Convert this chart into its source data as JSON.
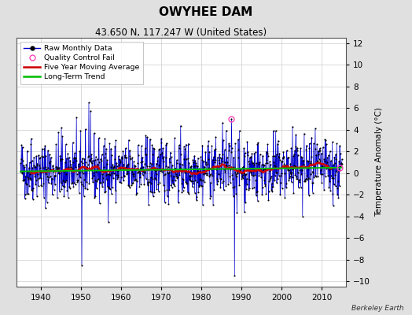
{
  "title": "OWYHEE DAM",
  "subtitle": "43.650 N, 117.247 W (United States)",
  "ylabel": "Temperature Anomaly (°C)",
  "credit": "Berkeley Earth",
  "ylim": [
    -10.5,
    12.5
  ],
  "yticks": [
    -10,
    -8,
    -6,
    -4,
    -2,
    0,
    2,
    4,
    6,
    8,
    10,
    12
  ],
  "xlim": [
    1934,
    2016
  ],
  "xticks": [
    1940,
    1950,
    1960,
    1970,
    1980,
    1990,
    2000,
    2010
  ],
  "raw_color": "#0000cc",
  "dot_color": "#000000",
  "qc_color": "#ff44bb",
  "moving_avg_color": "#cc0000",
  "trend_color": "#00bb00",
  "background_color": "#e0e0e0",
  "plot_background": "#ffffff",
  "legend_labels": [
    "Raw Monthly Data",
    "Quality Control Fail",
    "Five Year Moving Average",
    "Long-Term Trend"
  ],
  "start_year": 1935.0,
  "end_year": 2015.0,
  "seed": 42,
  "qc_fail_year": 1987.5,
  "qc_fail_value": 5.0,
  "qc_fail2_year": 2014.5,
  "qc_fail2_value": 0.5
}
